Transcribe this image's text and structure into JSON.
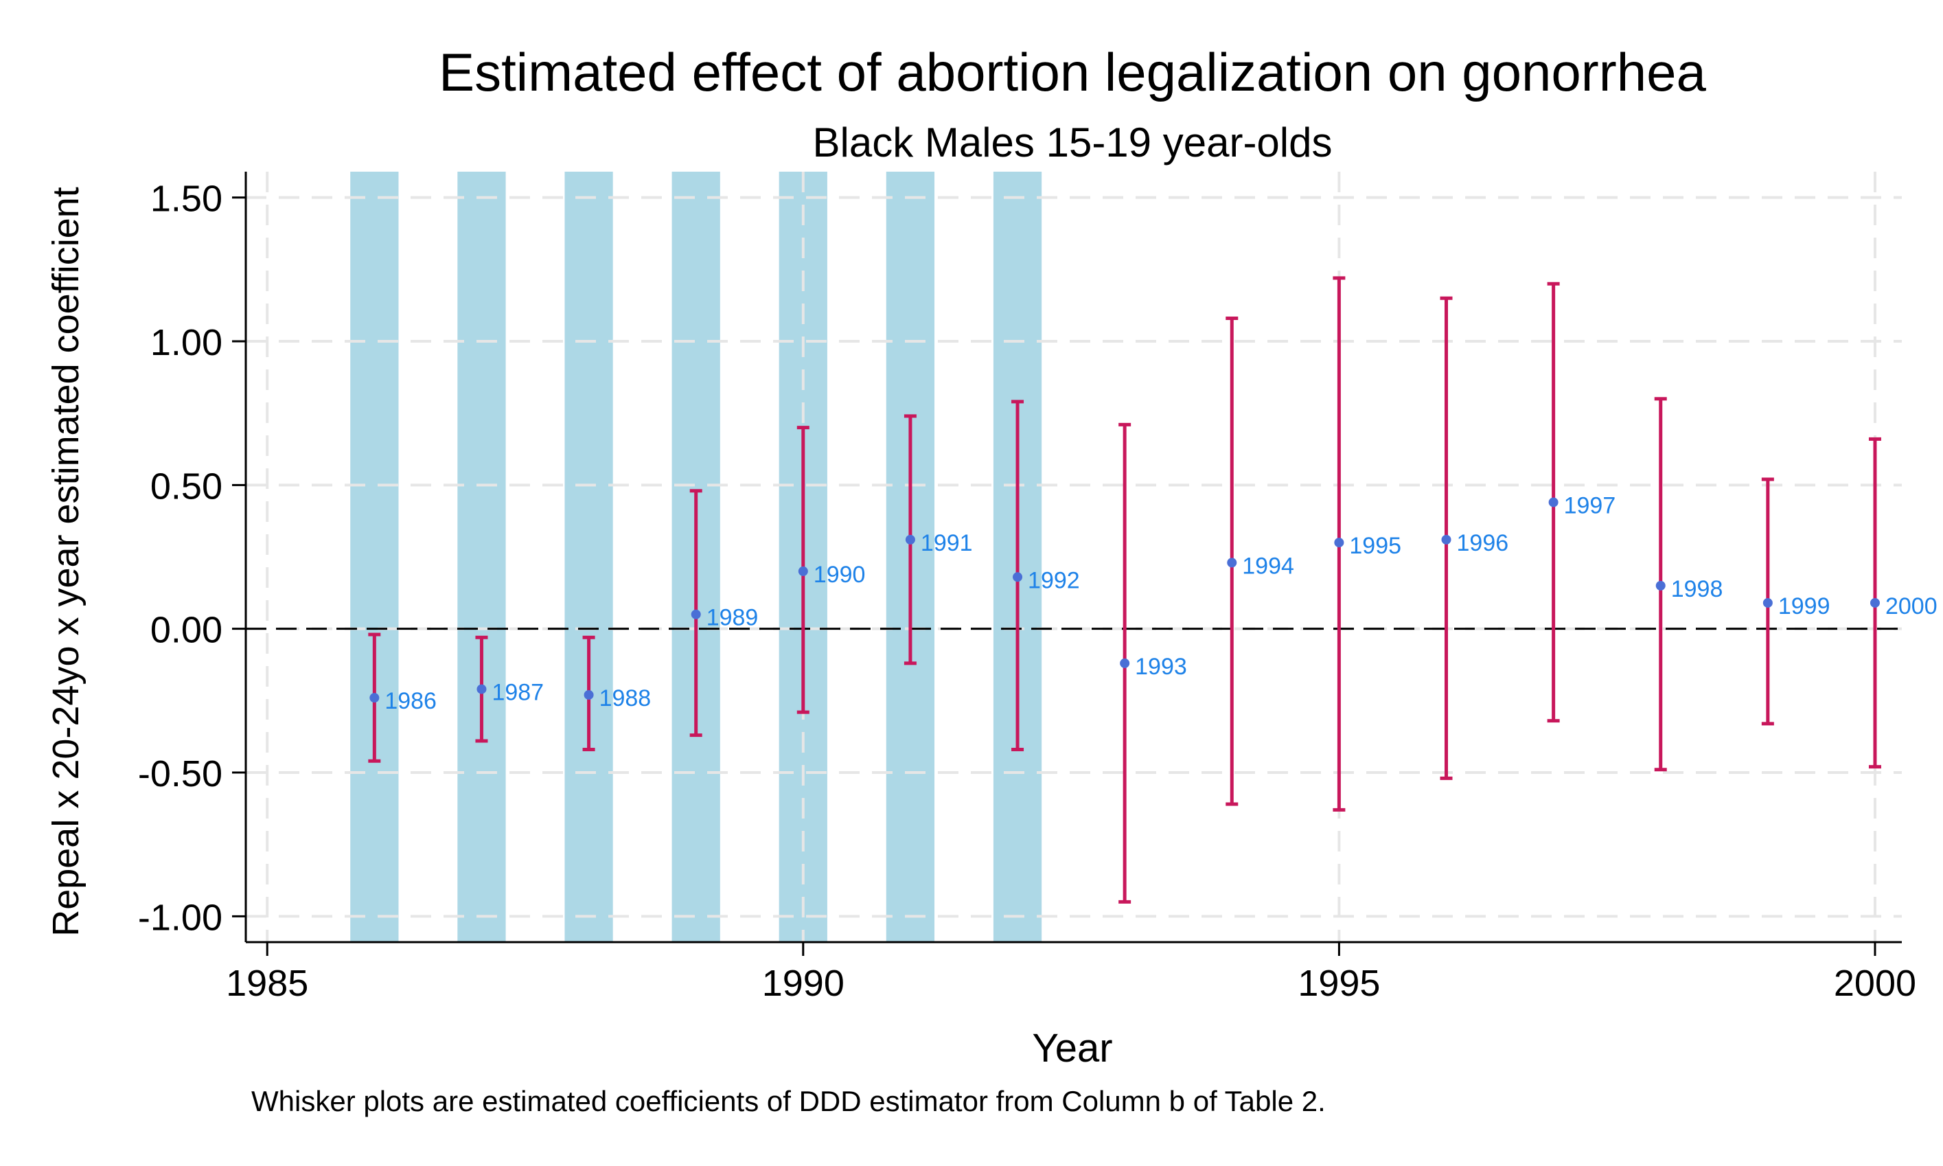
{
  "chart_data": {
    "type": "errorbar",
    "title": "Estimated effect of abortion legalization on gonorrhea",
    "subtitle": "Black Males 15-19 year-olds",
    "xlabel": "Year",
    "ylabel": "Repeal x 20-24yo x year estimated coefficient",
    "note": "Whisker plots are estimated coefficients of DDD estimator from Column b of Table 2.",
    "xlim": [
      1984.8,
      2000.25
    ],
    "ylim": [
      -1.09,
      1.59
    ],
    "x_ticks": [
      1985,
      1990,
      1995,
      2000
    ],
    "x_tick_labels": [
      "1985",
      "1990",
      "1995",
      "2000"
    ],
    "y_ticks": [
      1.5,
      1.0,
      0.5,
      0.0,
      -0.5,
      -1.0
    ],
    "y_tick_labels": [
      "1.50",
      "1.00",
      "0.50",
      "0.00",
      "-0.50",
      "-1.00"
    ],
    "grid": true,
    "reference_line_y": 0,
    "shaded_years": [
      1986,
      1987,
      1988,
      1989,
      1990,
      1991,
      1992
    ],
    "points": [
      {
        "year": 1986,
        "label": "1986",
        "coef": -0.24,
        "lo": -0.46,
        "hi": -0.02
      },
      {
        "year": 1987,
        "label": "1987",
        "coef": -0.21,
        "lo": -0.39,
        "hi": -0.03
      },
      {
        "year": 1988,
        "label": "1988",
        "coef": -0.23,
        "lo": -0.42,
        "hi": -0.03
      },
      {
        "year": 1989,
        "label": "1989",
        "coef": 0.05,
        "lo": -0.37,
        "hi": 0.48
      },
      {
        "year": 1990,
        "label": "1990",
        "coef": 0.2,
        "lo": -0.29,
        "hi": 0.7
      },
      {
        "year": 1991,
        "label": "1991",
        "coef": 0.31,
        "lo": -0.12,
        "hi": 0.74
      },
      {
        "year": 1992,
        "label": "1992",
        "coef": 0.18,
        "lo": -0.42,
        "hi": 0.79
      },
      {
        "year": 1993,
        "label": "1993",
        "coef": -0.12,
        "lo": -0.95,
        "hi": 0.71
      },
      {
        "year": 1994,
        "label": "1994",
        "coef": 0.23,
        "lo": -0.61,
        "hi": 1.08
      },
      {
        "year": 1995,
        "label": "1995",
        "coef": 0.3,
        "lo": -0.63,
        "hi": 1.22
      },
      {
        "year": 1996,
        "label": "1996",
        "coef": 0.31,
        "lo": -0.52,
        "hi": 1.15
      },
      {
        "year": 1997,
        "label": "1997",
        "coef": 0.44,
        "lo": -0.32,
        "hi": 1.2
      },
      {
        "year": 1998,
        "label": "1998",
        "coef": 0.15,
        "lo": -0.49,
        "hi": 0.8
      },
      {
        "year": 1999,
        "label": "1999",
        "coef": 0.09,
        "lo": -0.33,
        "hi": 0.52
      },
      {
        "year": 2000,
        "label": "2000",
        "coef": 0.09,
        "lo": -0.48,
        "hi": 0.66
      }
    ],
    "colors": {
      "shade": "#add8e6",
      "whisker": "#c8175b",
      "point": "#4a6fd6",
      "point_label": "#1e82e8",
      "grid": "#e6e6e6",
      "reference": "#000000",
      "text": "#000000"
    }
  }
}
